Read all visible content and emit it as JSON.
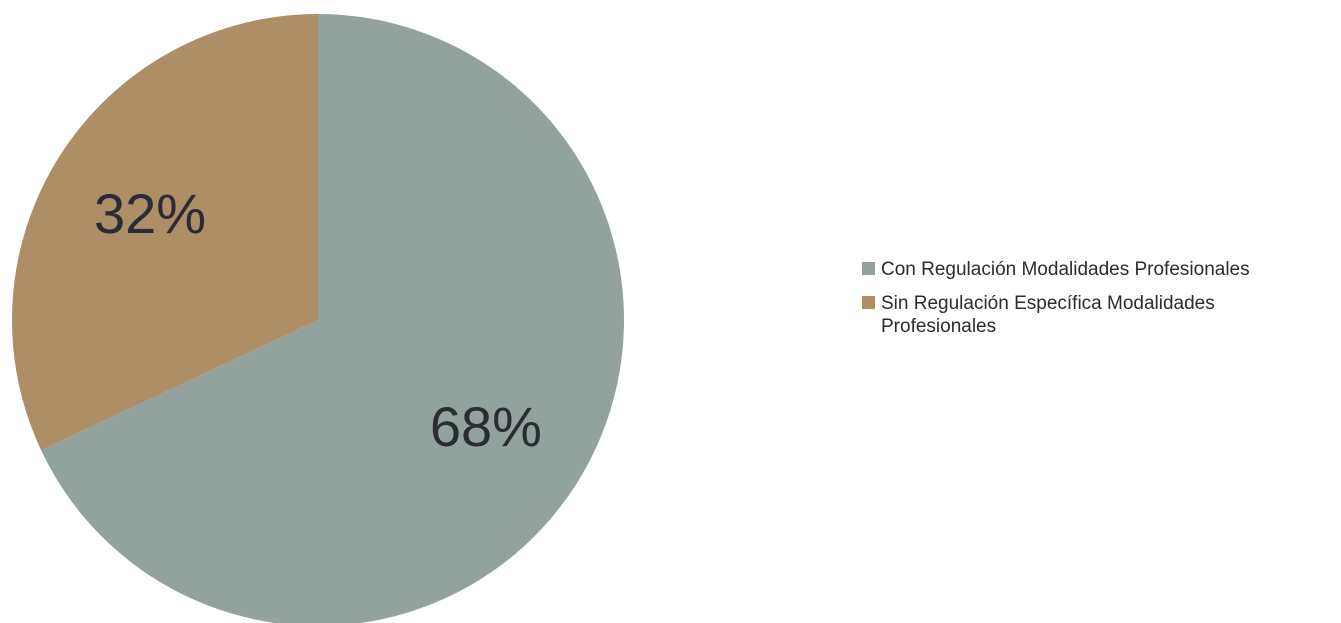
{
  "chart_data": {
    "type": "pie",
    "title": "",
    "slices": [
      {
        "name": "Con Regulación Modalidades Profesionales",
        "value": 68,
        "label": "68%",
        "color": "#93a29c"
      },
      {
        "name": "Sin Regulación Específica Modalidades Profesionales",
        "value": 32,
        "label": "32%",
        "color": "#ad8e67"
      }
    ],
    "legend_position": "right"
  },
  "legend": {
    "items": [
      {
        "label": "Con Regulación Modalidades Profesionales",
        "color": "#93a29c"
      },
      {
        "label": "Sin Regulación Específica Modalidades Profesionales",
        "color": "#ad8e67"
      }
    ]
  }
}
